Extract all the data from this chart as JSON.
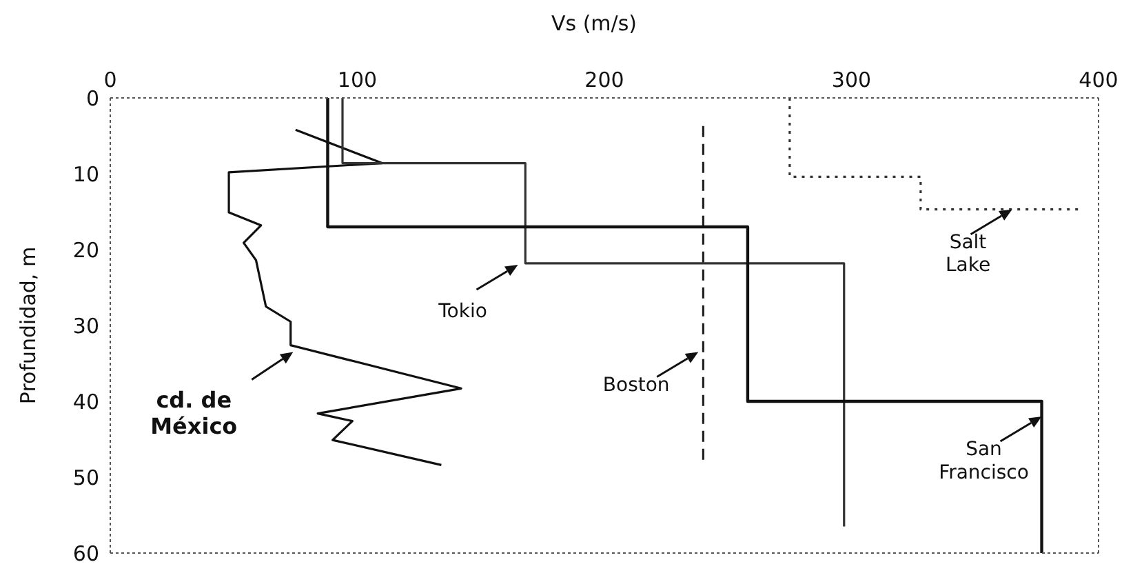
{
  "chart_data": {
    "type": "line",
    "xlabel": "Vs (m/s)",
    "ylabel": "Profundidad, m",
    "xlim": [
      0,
      400
    ],
    "xticks": [
      0,
      100,
      200,
      300,
      400
    ],
    "ylim": [
      60,
      0
    ],
    "yticks": [
      0,
      10,
      20,
      30,
      40,
      50,
      60
    ],
    "marker": "none",
    "series": [
      {
        "color": "#111111",
        "line_style": "solid",
        "x": [
          75,
          110,
          48,
          48,
          61,
          54,
          59,
          63,
          73,
          73,
          142,
          84,
          98,
          90,
          134
        ],
        "values": [
          4.2,
          8.6,
          9.8,
          15.1,
          16.8,
          19.1,
          21.4,
          27.5,
          29.5,
          32.6,
          38.3,
          41.6,
          42.6,
          45.1,
          48.4
        ]
      },
      {
        "color": "#333333",
        "line_style": "solid",
        "x": [
          94,
          94,
          168,
          168,
          297,
          297
        ],
        "values": [
          0,
          8.6,
          8.6,
          21.8,
          21.8,
          56.5
        ]
      },
      {
        "color": "#222222",
        "line_style": "dashed",
        "x": [
          240,
          240
        ],
        "values": [
          3.7,
          47.7
        ]
      },
      {
        "color": "#111111",
        "line_style": "solid",
        "x": [
          88,
          88,
          258,
          258,
          377,
          377
        ],
        "values": [
          0,
          17,
          17,
          40,
          40,
          60
        ]
      },
      {
        "color": "#333333",
        "line_style": "dotted",
        "x": [
          275,
          275,
          328,
          328,
          392
        ],
        "values": [
          0,
          10.4,
          10.4,
          14.7,
          14.7
        ]
      }
    ],
    "annotations": [
      {
        "text": "cd. de\nMéxico",
        "x": 74,
        "y": 33.5
      },
      {
        "text": "Tokio",
        "x": 165,
        "y": 22
      },
      {
        "text": "Boston",
        "x": 238,
        "y": 33.5
      },
      {
        "text": "San\nFrancisco",
        "x": 377,
        "y": 42
      },
      {
        "text": "Salt\nLake",
        "x": 365,
        "y": 14.7
      }
    ]
  }
}
